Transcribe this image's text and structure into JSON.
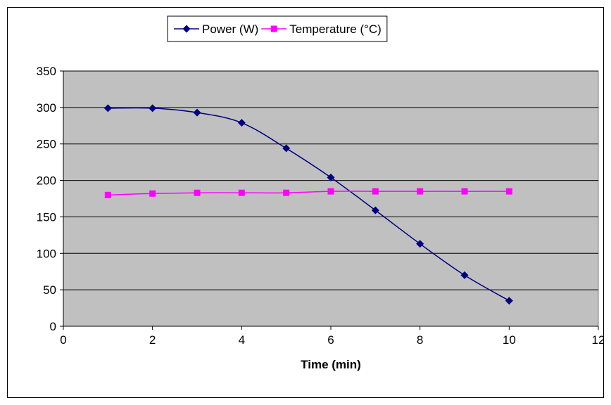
{
  "chart_data": {
    "type": "line",
    "title": "",
    "xlabel": "Time (min)",
    "ylabel": "",
    "xlim": [
      0,
      12
    ],
    "ylim": [
      0,
      350
    ],
    "x_ticks": [
      0,
      2,
      4,
      6,
      8,
      10,
      12
    ],
    "y_ticks": [
      0,
      50,
      100,
      150,
      200,
      250,
      300,
      350
    ],
    "grid": "horizontal",
    "legend_position": "top",
    "plot_background": "#c0c0c0",
    "series": [
      {
        "name": "Power (W)",
        "color": "#000080",
        "marker": "diamond",
        "x": [
          1,
          2,
          3,
          4,
          5,
          6,
          7,
          8,
          9,
          10
        ],
        "values": [
          299,
          299,
          293,
          279,
          244,
          204,
          159,
          113,
          70,
          35
        ]
      },
      {
        "name": "Temperature (°C)",
        "color": "#ff00ff",
        "marker": "square",
        "x": [
          1,
          2,
          3,
          4,
          5,
          6,
          7,
          8,
          9,
          10
        ],
        "values": [
          180,
          182,
          183,
          183,
          183,
          185,
          185,
          185,
          185,
          185
        ]
      }
    ]
  }
}
